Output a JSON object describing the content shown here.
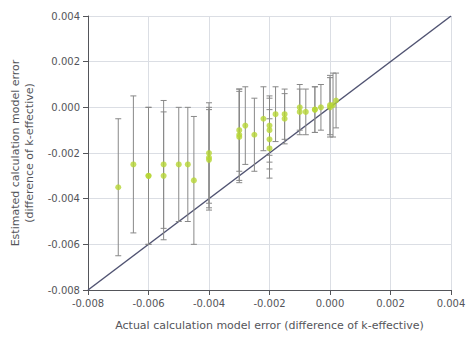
{
  "chart_data": {
    "type": "scatter",
    "xlabel": "Actual calculation model error (difference of k-effective)",
    "ylabel": "Estimated calculation model error\n(difference of k-effective)",
    "grid": true,
    "xlim": [
      -0.008,
      0.004
    ],
    "ylim": [
      -0.008,
      0.004
    ],
    "xticks": [
      -0.008,
      -0.006,
      -0.004,
      -0.002,
      {
        "value": 0,
        "label": "0.000"
      },
      0.002,
      0.004
    ],
    "yticks": [
      -0.008,
      -0.006,
      -0.004,
      -0.002,
      {
        "value": 0,
        "label": "0.000"
      },
      0.002,
      0.004
    ],
    "series": [
      {
        "type": "scatter",
        "marker": "circle",
        "x": [
          -0.007,
          -0.0065,
          -0.006,
          -0.006,
          -0.0055,
          -0.0055,
          -0.005,
          -0.0047,
          -0.0045,
          -0.004,
          -0.004,
          -0.004,
          -0.003,
          -0.003,
          -0.003,
          -0.0028,
          -0.0025,
          -0.0022,
          -0.002,
          -0.002,
          -0.002,
          -0.002,
          -0.0018,
          -0.0015,
          -0.0015,
          -0.001,
          -0.001,
          -0.0008,
          -0.0005,
          -0.0005,
          -0.0003,
          0.0,
          0.0,
          0.0001,
          0.0002
        ],
        "values": [
          -0.0035,
          -0.0025,
          -0.003,
          -0.003,
          -0.0025,
          -0.003,
          -0.0025,
          -0.0025,
          -0.0032,
          -0.002,
          -0.0022,
          -0.0023,
          -0.0012,
          -0.0013,
          -0.001,
          -0.0008,
          -0.0012,
          -0.0005,
          -0.001,
          -0.0014,
          -0.0018,
          -0.0008,
          -0.0003,
          -0.0005,
          -0.0003,
          -0.0002,
          0.0,
          -0.0002,
          -0.0001,
          -0.0001,
          0.0,
          0.0001,
          0.0,
          0.0001,
          0.0003
        ],
        "y_err": [
          0.003,
          0.003,
          0.003,
          0.003,
          0.0028,
          0.0028,
          0.0025,
          0.0025,
          0.0028,
          0.0022,
          0.0022,
          0.0022,
          0.002,
          0.002,
          0.0018,
          0.0017,
          0.0016,
          0.0014,
          0.0014,
          0.0013,
          0.0013,
          0.0013,
          0.0012,
          0.0011,
          0.0011,
          0.001,
          0.001,
          0.001,
          0.001,
          0.001,
          0.001,
          0.0013,
          0.0013,
          0.0014,
          0.0012
        ]
      },
      {
        "type": "line",
        "line_style": "solid",
        "x": [
          -0.008,
          0.004
        ],
        "values": [
          -0.008,
          0.004
        ]
      }
    ]
  }
}
